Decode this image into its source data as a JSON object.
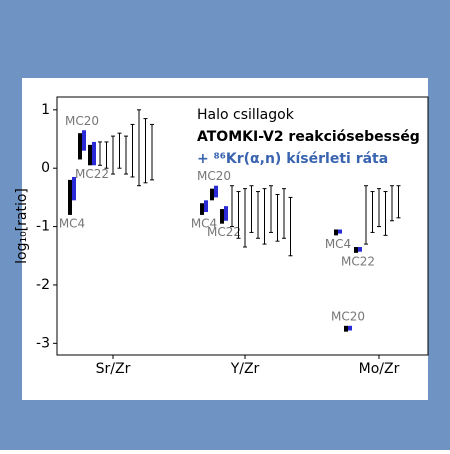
{
  "chart_data": {
    "type": "range",
    "ylabel": "log₁₀[ratio]",
    "annotations": [
      "Halo csillagok",
      "ATOMKI-V2 reakciósebesség",
      "+ ⁸⁶Kr(α,n) kísérleti ráta"
    ],
    "categories": [
      "Sr/Zr",
      "Y/Zr",
      "Mo/Zr"
    ],
    "ylim": [
      -3.2,
      1.22
    ],
    "yticks": [
      -3,
      -2,
      -1,
      0,
      1
    ],
    "model_color": "#000000",
    "variant_color": "#2a2ad6",
    "models": [
      {
        "name": "MC4",
        "category": 0,
        "black": [
          -0.8,
          -0.2
        ],
        "blue": [
          -0.55,
          -0.15
        ]
      },
      {
        "name": "MC20",
        "category": 0,
        "black": [
          0.15,
          0.6
        ],
        "blue": [
          0.3,
          0.65
        ]
      },
      {
        "name": "MC22",
        "category": 0,
        "black": [
          0.05,
          0.4
        ],
        "blue": [
          0.05,
          0.45
        ]
      },
      {
        "name": "MC4",
        "category": 1,
        "black": [
          -0.8,
          -0.6
        ],
        "blue": [
          -0.75,
          -0.55
        ]
      },
      {
        "name": "MC20",
        "category": 1,
        "black": [
          -0.55,
          -0.35
        ],
        "blue": [
          -0.5,
          -0.3
        ]
      },
      {
        "name": "MC22",
        "category": 1,
        "black": [
          -0.95,
          -0.7
        ],
        "blue": [
          -0.9,
          -0.65
        ]
      },
      {
        "name": "MC4",
        "category": 2,
        "black": [
          -1.15,
          -1.05
        ],
        "blue": [
          -1.12,
          -1.05
        ]
      },
      {
        "name": "MC20",
        "category": 2,
        "black": [
          -2.8,
          -2.7
        ],
        "blue": [
          -2.78,
          -2.7
        ]
      },
      {
        "name": "MC22",
        "category": 2,
        "black": [
          -1.45,
          -1.35
        ],
        "blue": [
          -1.43,
          -1.35
        ]
      }
    ],
    "observations": [
      [
        [
          0.05,
          0.45
        ],
        [
          0.0,
          0.45
        ],
        [
          -0.1,
          0.55
        ],
        [
          0.0,
          0.6
        ],
        [
          -0.1,
          0.55
        ],
        [
          -0.15,
          0.75
        ],
        [
          -0.3,
          1.0
        ],
        [
          -0.25,
          0.85
        ],
        [
          -0.2,
          0.75
        ]
      ],
      [
        [
          -1.0,
          -0.3
        ],
        [
          -1.2,
          -0.4
        ],
        [
          -1.35,
          -0.35
        ],
        [
          -1.1,
          -0.3
        ],
        [
          -1.2,
          -0.4
        ],
        [
          -1.3,
          -0.35
        ],
        [
          -1.1,
          -0.3
        ],
        [
          -1.25,
          -0.45
        ],
        [
          -1.2,
          -0.35
        ],
        [
          -1.5,
          -0.5
        ]
      ],
      [
        [
          -1.3,
          -0.3
        ],
        [
          -1.1,
          -0.4
        ],
        [
          -1.0,
          -0.35
        ],
        [
          -1.15,
          -0.4
        ],
        [
          -0.9,
          -0.3
        ],
        [
          -0.85,
          -0.3
        ]
      ]
    ]
  }
}
